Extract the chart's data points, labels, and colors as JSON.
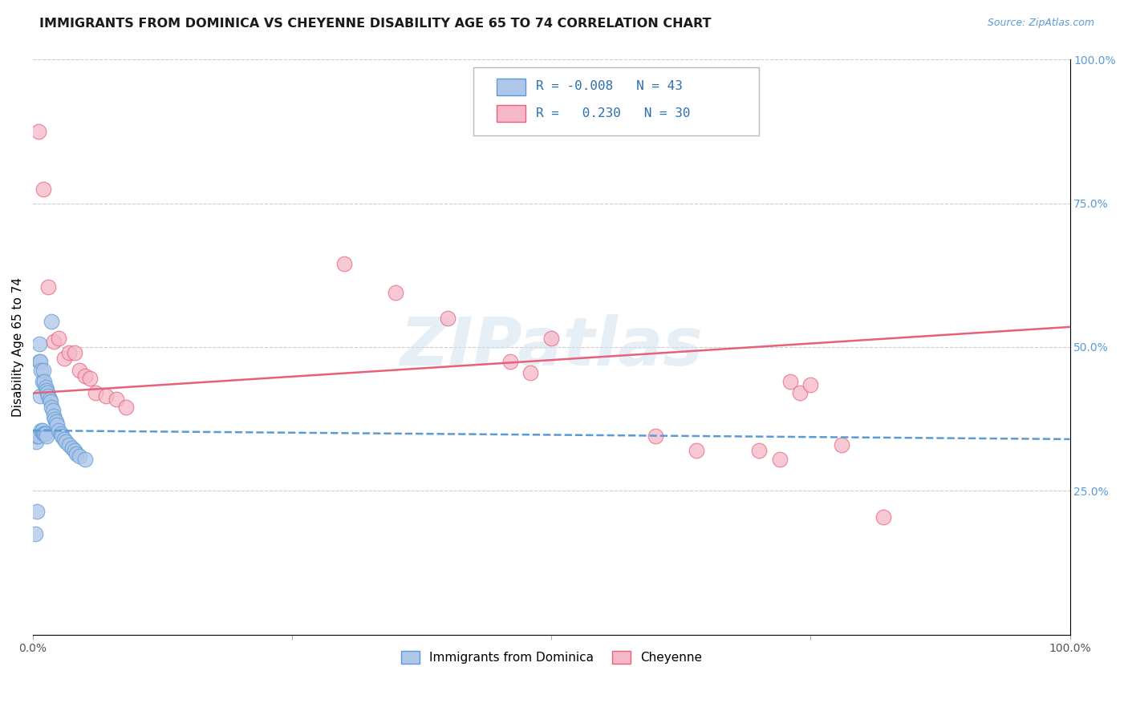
{
  "title": "IMMIGRANTS FROM DOMINICA VS CHEYENNE DISABILITY AGE 65 TO 74 CORRELATION CHART",
  "source": "Source: ZipAtlas.com",
  "ylabel": "Disability Age 65 to 74",
  "xlim": [
    0.0,
    1.0
  ],
  "ylim": [
    0.0,
    1.0
  ],
  "ytick_labels_right": [
    "100.0%",
    "75.0%",
    "50.0%",
    "25.0%"
  ],
  "ytick_positions_right": [
    1.0,
    0.75,
    0.5,
    0.25
  ],
  "legend_label1": "Immigrants from Dominica",
  "legend_label2": "Cheyenne",
  "r1": "-0.008",
  "n1": "43",
  "r2": "0.230",
  "n2": "30",
  "color_blue": "#aec6e8",
  "color_pink": "#f5b8c8",
  "line_color_blue": "#5b9bd5",
  "line_color_pink": "#e8607a",
  "watermark": "ZIPatlas",
  "blue_trend": [
    0.0,
    1.0,
    0.355,
    0.34
  ],
  "pink_trend": [
    0.0,
    1.0,
    0.42,
    0.535
  ],
  "blue_scatter_x": [
    0.002,
    0.003,
    0.004,
    0.004,
    0.005,
    0.006,
    0.006,
    0.007,
    0.007,
    0.008,
    0.008,
    0.009,
    0.009,
    0.01,
    0.01,
    0.011,
    0.011,
    0.012,
    0.012,
    0.013,
    0.013,
    0.014,
    0.015,
    0.016,
    0.017,
    0.018,
    0.018,
    0.019,
    0.02,
    0.021,
    0.022,
    0.023,
    0.025,
    0.027,
    0.028,
    0.03,
    0.032,
    0.035,
    0.038,
    0.04,
    0.042,
    0.045,
    0.05
  ],
  "blue_scatter_y": [
    0.175,
    0.335,
    0.215,
    0.345,
    0.345,
    0.475,
    0.505,
    0.415,
    0.475,
    0.355,
    0.46,
    0.355,
    0.44,
    0.35,
    0.46,
    0.35,
    0.44,
    0.35,
    0.43,
    0.345,
    0.425,
    0.42,
    0.415,
    0.41,
    0.405,
    0.395,
    0.545,
    0.39,
    0.38,
    0.375,
    0.37,
    0.365,
    0.355,
    0.35,
    0.345,
    0.34,
    0.335,
    0.33,
    0.325,
    0.32,
    0.315,
    0.31,
    0.305
  ],
  "pink_scatter_x": [
    0.005,
    0.01,
    0.015,
    0.02,
    0.025,
    0.03,
    0.035,
    0.04,
    0.045,
    0.05,
    0.055,
    0.06,
    0.07,
    0.08,
    0.09,
    0.3,
    0.35,
    0.4,
    0.46,
    0.48,
    0.5,
    0.6,
    0.64,
    0.7,
    0.72,
    0.73,
    0.74,
    0.75,
    0.78,
    0.82
  ],
  "pink_scatter_y": [
    0.875,
    0.775,
    0.605,
    0.51,
    0.515,
    0.48,
    0.49,
    0.49,
    0.46,
    0.45,
    0.445,
    0.42,
    0.415,
    0.41,
    0.395,
    0.645,
    0.595,
    0.55,
    0.475,
    0.455,
    0.515,
    0.345,
    0.32,
    0.32,
    0.305,
    0.44,
    0.42,
    0.435,
    0.33,
    0.205
  ]
}
